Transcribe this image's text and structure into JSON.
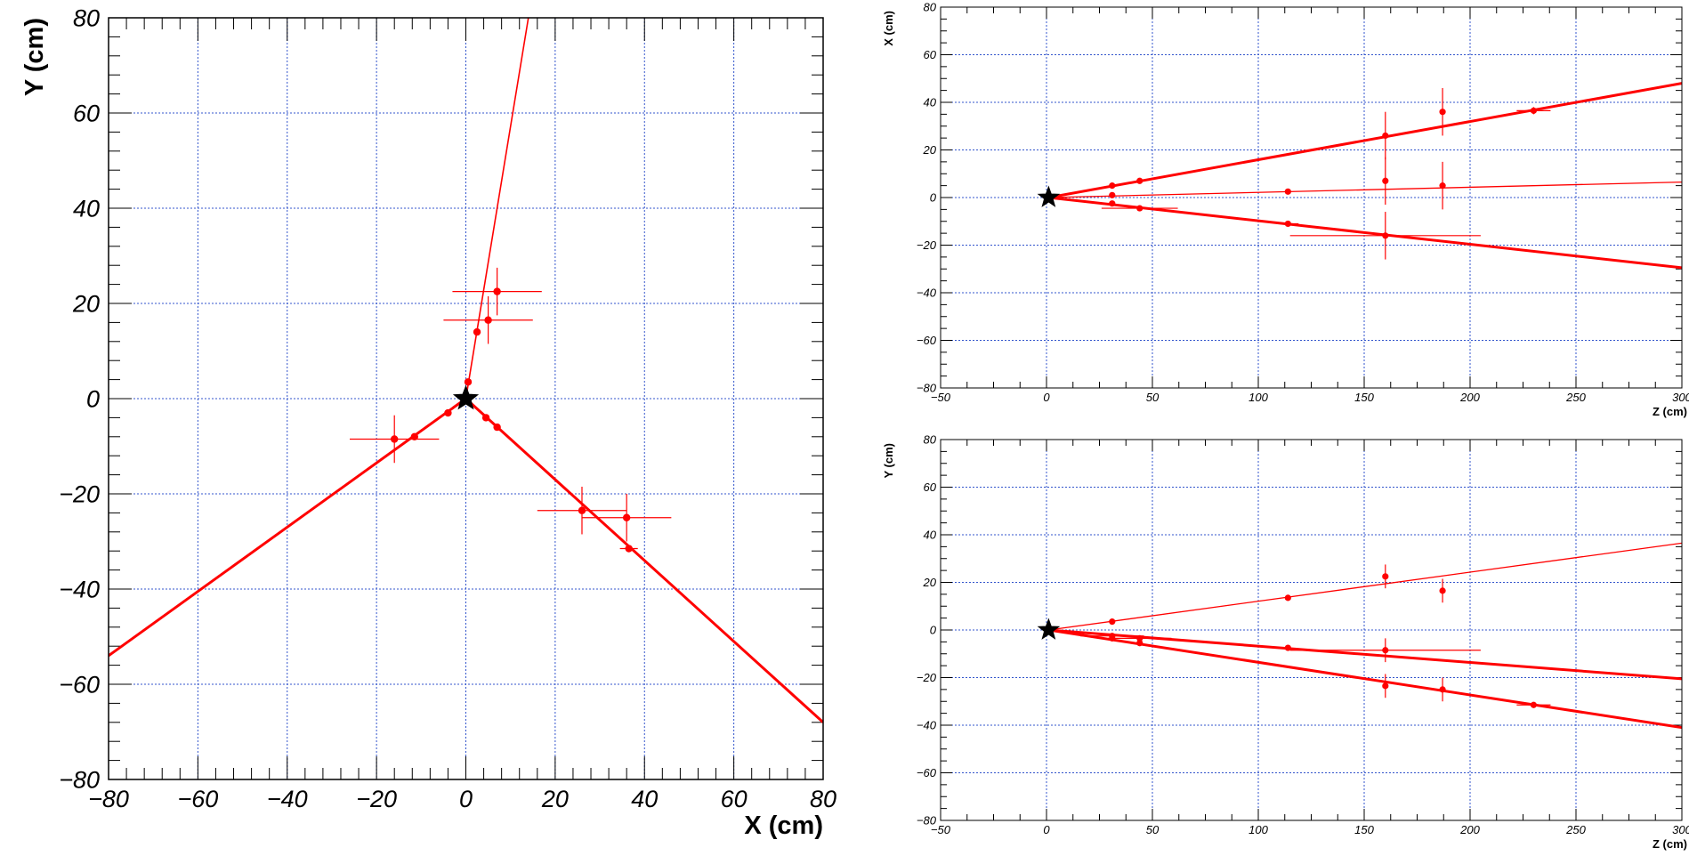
{
  "chart_data": [
    {
      "type": "scatter",
      "title": "",
      "xlabel": "X (cm)",
      "ylabel": "Y (cm)",
      "xlim": [
        -80,
        80
      ],
      "ylim": [
        -80,
        80
      ],
      "xticks": [
        -80,
        -60,
        -40,
        -20,
        0,
        20,
        40,
        60,
        80
      ],
      "yticks": [
        -80,
        -60,
        -40,
        -20,
        0,
        20,
        40,
        60,
        80
      ],
      "xtick_labels": [
        "−80",
        "−60",
        "−40",
        "−20",
        "0",
        "20",
        "40",
        "60",
        "80"
      ],
      "ytick_labels": [
        "−80",
        "−60",
        "−40",
        "−20",
        "0",
        "20",
        "40",
        "60",
        "80"
      ],
      "grid": true,
      "vertex": {
        "x": 0,
        "y": 0
      },
      "colors": {
        "tracks": "#ff0000",
        "points": "#ff0000",
        "vertex": "#000000",
        "grid": "#3355cc"
      },
      "tracks": [
        {
          "x1": 0,
          "y1": 0,
          "x2": 14,
          "y2": 80,
          "width": "thin"
        },
        {
          "x1": 0,
          "y1": 0,
          "x2": -80,
          "y2": -54,
          "width": "thick"
        },
        {
          "x1": 0,
          "y1": 0,
          "x2": 80,
          "y2": -68,
          "width": "thick"
        }
      ],
      "points": [
        {
          "x": 0.5,
          "y": 3.5,
          "ex": 0,
          "ey": 0
        },
        {
          "x": 2.5,
          "y": 14,
          "ex": 0,
          "ey": 0
        },
        {
          "x": 5,
          "y": 16.5,
          "ex": 10,
          "ey": 5
        },
        {
          "x": 7,
          "y": 22.5,
          "ex": 10,
          "ey": 5
        },
        {
          "x": -4,
          "y": -3,
          "ex": 0,
          "ey": 0
        },
        {
          "x": -11.5,
          "y": -8,
          "ex": 0,
          "ey": 0
        },
        {
          "x": -16,
          "y": -8.5,
          "ex": 10,
          "ey": 5
        },
        {
          "x": 4.5,
          "y": -4,
          "ex": 0,
          "ey": 0
        },
        {
          "x": 7,
          "y": -6,
          "ex": 0,
          "ey": 0
        },
        {
          "x": 26,
          "y": -23.5,
          "ex": 10,
          "ey": 5
        },
        {
          "x": 36,
          "y": -25,
          "ex": 10,
          "ey": 5
        },
        {
          "x": 36.5,
          "y": -31.5,
          "ex": 2,
          "ey": 0
        }
      ]
    },
    {
      "type": "scatter",
      "title": "",
      "xlabel": "Z (cm)",
      "ylabel": "X (cm)",
      "xlim": [
        -50,
        300
      ],
      "ylim": [
        -80,
        80
      ],
      "xticks": [
        -50,
        0,
        50,
        100,
        150,
        200,
        250,
        300
      ],
      "yticks": [
        -80,
        -60,
        -40,
        -20,
        0,
        20,
        40,
        60,
        80
      ],
      "xtick_labels": [
        "−50",
        "0",
        "50",
        "100",
        "150",
        "200",
        "250",
        "300"
      ],
      "ytick_labels": [
        "−80",
        "−60",
        "−40",
        "−20",
        "0",
        "20",
        "40",
        "60",
        "80"
      ],
      "grid": true,
      "vertex": {
        "x": 1,
        "y": 0
      },
      "colors": {
        "tracks": "#ff0000",
        "points": "#ff0000",
        "vertex": "#000000",
        "grid": "#3355cc"
      },
      "tracks": [
        {
          "x1": 1,
          "y1": 0,
          "x2": 300,
          "y2": 48,
          "width": "thick"
        },
        {
          "x1": 1,
          "y1": 0,
          "x2": 300,
          "y2": 6.5,
          "width": "thin"
        },
        {
          "x1": 1,
          "y1": 0,
          "x2": 300,
          "y2": -29.5,
          "width": "thick"
        }
      ],
      "points": [
        {
          "x": 31,
          "y": 5,
          "ex": 0,
          "ey": 0
        },
        {
          "x": 44,
          "y": 7,
          "ex": 0,
          "ey": 0
        },
        {
          "x": 160,
          "y": 26,
          "ex": 0,
          "ey": 10
        },
        {
          "x": 187,
          "y": 36,
          "ex": 0,
          "ey": 10
        },
        {
          "x": 230,
          "y": 36.5,
          "ex": 8,
          "ey": 1.5
        },
        {
          "x": 31,
          "y": 1,
          "ex": 0,
          "ey": 0
        },
        {
          "x": 114,
          "y": 2.5,
          "ex": 0,
          "ey": 0
        },
        {
          "x": 160,
          "y": 7,
          "ex": 0,
          "ey": 10
        },
        {
          "x": 187,
          "y": 5,
          "ex": 0,
          "ey": 10
        },
        {
          "x": 31,
          "y": -2.5,
          "ex": 0,
          "ey": 0
        },
        {
          "x": 44,
          "y": -4.5,
          "ex": 18,
          "ey": 0
        },
        {
          "x": 114,
          "y": -11,
          "ex": 5,
          "ey": 0
        },
        {
          "x": 160,
          "y": -16,
          "ex": 45,
          "ey": 10
        }
      ]
    },
    {
      "type": "scatter",
      "title": "",
      "xlabel": "Z (cm)",
      "ylabel": "Y (cm)",
      "xlim": [
        -50,
        300
      ],
      "ylim": [
        -80,
        80
      ],
      "xticks": [
        -50,
        0,
        50,
        100,
        150,
        200,
        250,
        300
      ],
      "yticks": [
        -80,
        -60,
        -40,
        -20,
        0,
        20,
        40,
        60,
        80
      ],
      "xtick_labels": [
        "−50",
        "0",
        "50",
        "100",
        "150",
        "200",
        "250",
        "300"
      ],
      "ytick_labels": [
        "−80",
        "−60",
        "−40",
        "−20",
        "0",
        "20",
        "40",
        "60",
        "80"
      ],
      "grid": true,
      "vertex": {
        "x": 1,
        "y": 0
      },
      "colors": {
        "tracks": "#ff0000",
        "points": "#ff0000",
        "vertex": "#000000",
        "grid": "#3355cc"
      },
      "tracks": [
        {
          "x1": 1,
          "y1": 0,
          "x2": 300,
          "y2": 36.5,
          "width": "thin"
        },
        {
          "x1": 1,
          "y1": 0,
          "x2": 300,
          "y2": -20.5,
          "width": "thick"
        },
        {
          "x1": 1,
          "y1": 0,
          "x2": 300,
          "y2": -41,
          "width": "thick"
        }
      ],
      "points": [
        {
          "x": 31,
          "y": 3.5,
          "ex": 0,
          "ey": 0
        },
        {
          "x": 114,
          "y": 13.5,
          "ex": 0,
          "ey": 0
        },
        {
          "x": 160,
          "y": 22.5,
          "ex": 0,
          "ey": 5
        },
        {
          "x": 187,
          "y": 16.5,
          "ex": 0,
          "ey": 5
        },
        {
          "x": 31,
          "y": -2.5,
          "ex": 15,
          "ey": 0
        },
        {
          "x": 44,
          "y": -3.5,
          "ex": 15,
          "ey": 0
        },
        {
          "x": 114,
          "y": -7.5,
          "ex": 0,
          "ey": 0
        },
        {
          "x": 160,
          "y": -8.5,
          "ex": 45,
          "ey": 5
        },
        {
          "x": 31,
          "y": -3.5,
          "ex": 0,
          "ey": 0
        },
        {
          "x": 44,
          "y": -5.5,
          "ex": 0,
          "ey": 0
        },
        {
          "x": 160,
          "y": -23.5,
          "ex": 0,
          "ey": 5
        },
        {
          "x": 187,
          "y": -25,
          "ex": 0,
          "ey": 5
        },
        {
          "x": 230,
          "y": -31.5,
          "ex": 8,
          "ey": 0
        }
      ]
    }
  ]
}
